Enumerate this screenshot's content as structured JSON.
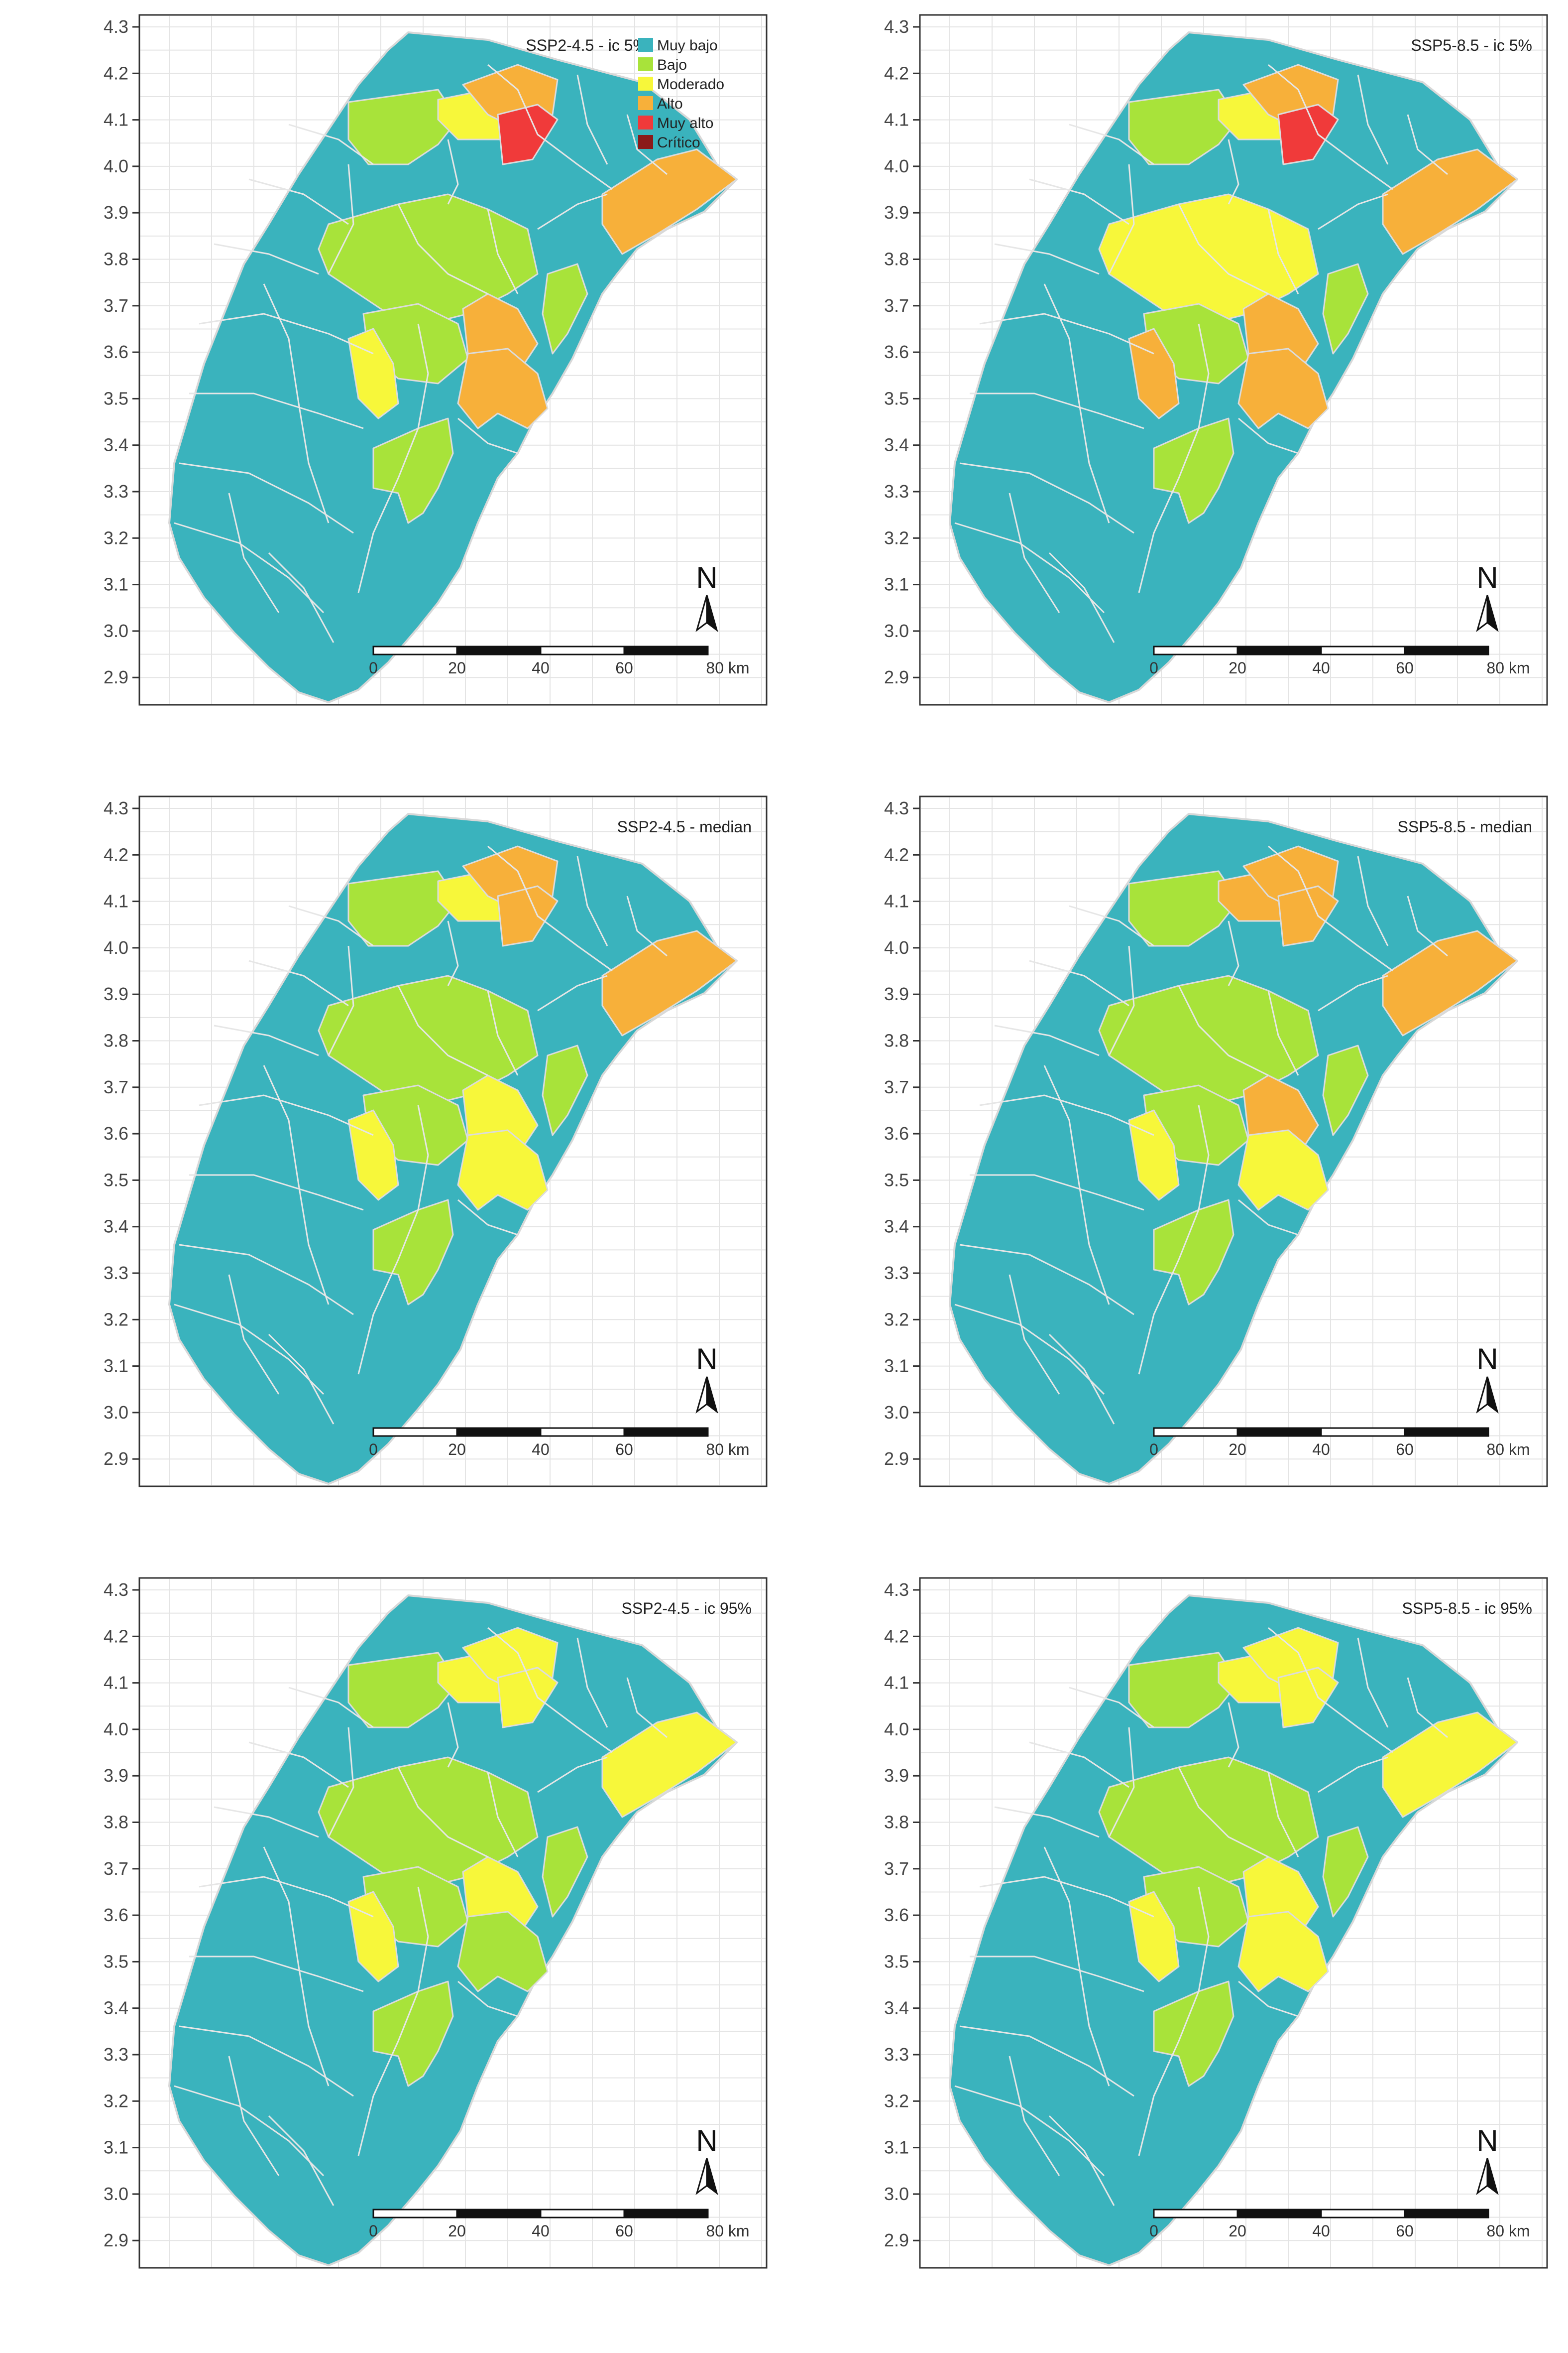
{
  "figure": {
    "legend": {
      "items": [
        {
          "label": "Muy bajo",
          "color": "#3AB3BD"
        },
        {
          "label": "Bajo",
          "color": "#A8E33A"
        },
        {
          "label": "Moderado",
          "color": "#F7F73A"
        },
        {
          "label": "Alto",
          "color": "#F7B03A"
        },
        {
          "label": "Muy alto",
          "color": "#F03A3A"
        },
        {
          "label": "Crítico",
          "color": "#8B1A1A"
        }
      ]
    },
    "y_ticks": [
      "4.3",
      "4.2",
      "4.1",
      "4.0",
      "3.9",
      "3.8",
      "3.7",
      "3.6",
      "3.5",
      "3.4",
      "3.3",
      "3.2",
      "3.1",
      "3.0",
      "2.9"
    ],
    "north_label": "N",
    "scale_labels": [
      "0",
      "20",
      "40",
      "60",
      "80 km"
    ],
    "panels": [
      {
        "title": "SSP2-4.5 - ic 5%",
        "show_legend": true,
        "zones": {
          "z1": "Bajo",
          "z2": "Moderado",
          "z3": "Alto",
          "z4": "Muy alto",
          "z5": "Bajo",
          "z6": "Alto",
          "z7": "Bajo",
          "z8": "Alto",
          "z9": "Alto",
          "z10": "Moderado",
          "z11": "Bajo",
          "z12": "Bajo"
        }
      },
      {
        "title": "SSP5-8.5 - ic 5%",
        "show_legend": false,
        "zones": {
          "z1": "Bajo",
          "z2": "Moderado",
          "z3": "Alto",
          "z4": "Muy alto",
          "z5": "Moderado",
          "z6": "Alto",
          "z7": "Bajo",
          "z8": "Alto",
          "z9": "Alto",
          "z10": "Alto",
          "z11": "Bajo",
          "z12": "Bajo"
        }
      },
      {
        "title": "SSP2-4.5 - median",
        "show_legend": false,
        "zones": {
          "z1": "Bajo",
          "z2": "Moderado",
          "z3": "Alto",
          "z4": "Alto",
          "z5": "Bajo",
          "z6": "Alto",
          "z7": "Bajo",
          "z8": "Moderado",
          "z9": "Moderado",
          "z10": "Moderado",
          "z11": "Bajo",
          "z12": "Bajo"
        }
      },
      {
        "title": "SSP5-8.5 - median",
        "show_legend": false,
        "zones": {
          "z1": "Bajo",
          "z2": "Alto",
          "z3": "Alto",
          "z4": "Alto",
          "z5": "Bajo",
          "z6": "Alto",
          "z7": "Bajo",
          "z8": "Alto",
          "z9": "Moderado",
          "z10": "Moderado",
          "z11": "Bajo",
          "z12": "Bajo"
        }
      },
      {
        "title": "SSP2-4.5 - ic 95%",
        "show_legend": false,
        "zones": {
          "z1": "Bajo",
          "z2": "Moderado",
          "z3": "Moderado",
          "z4": "Moderado",
          "z5": "Bajo",
          "z6": "Moderado",
          "z7": "Bajo",
          "z8": "Moderado",
          "z9": "Bajo",
          "z10": "Moderado",
          "z11": "Bajo",
          "z12": "Bajo"
        }
      },
      {
        "title": "SSP5-8.5 - ic 95%",
        "show_legend": false,
        "zones": {
          "z1": "Bajo",
          "z2": "Moderado",
          "z3": "Moderado",
          "z4": "Moderado",
          "z5": "Bajo",
          "z6": "Moderado",
          "z7": "Bajo",
          "z8": "Moderado",
          "z9": "Moderado",
          "z10": "Moderado",
          "z11": "Bajo",
          "z12": "Bajo"
        }
      }
    ]
  }
}
